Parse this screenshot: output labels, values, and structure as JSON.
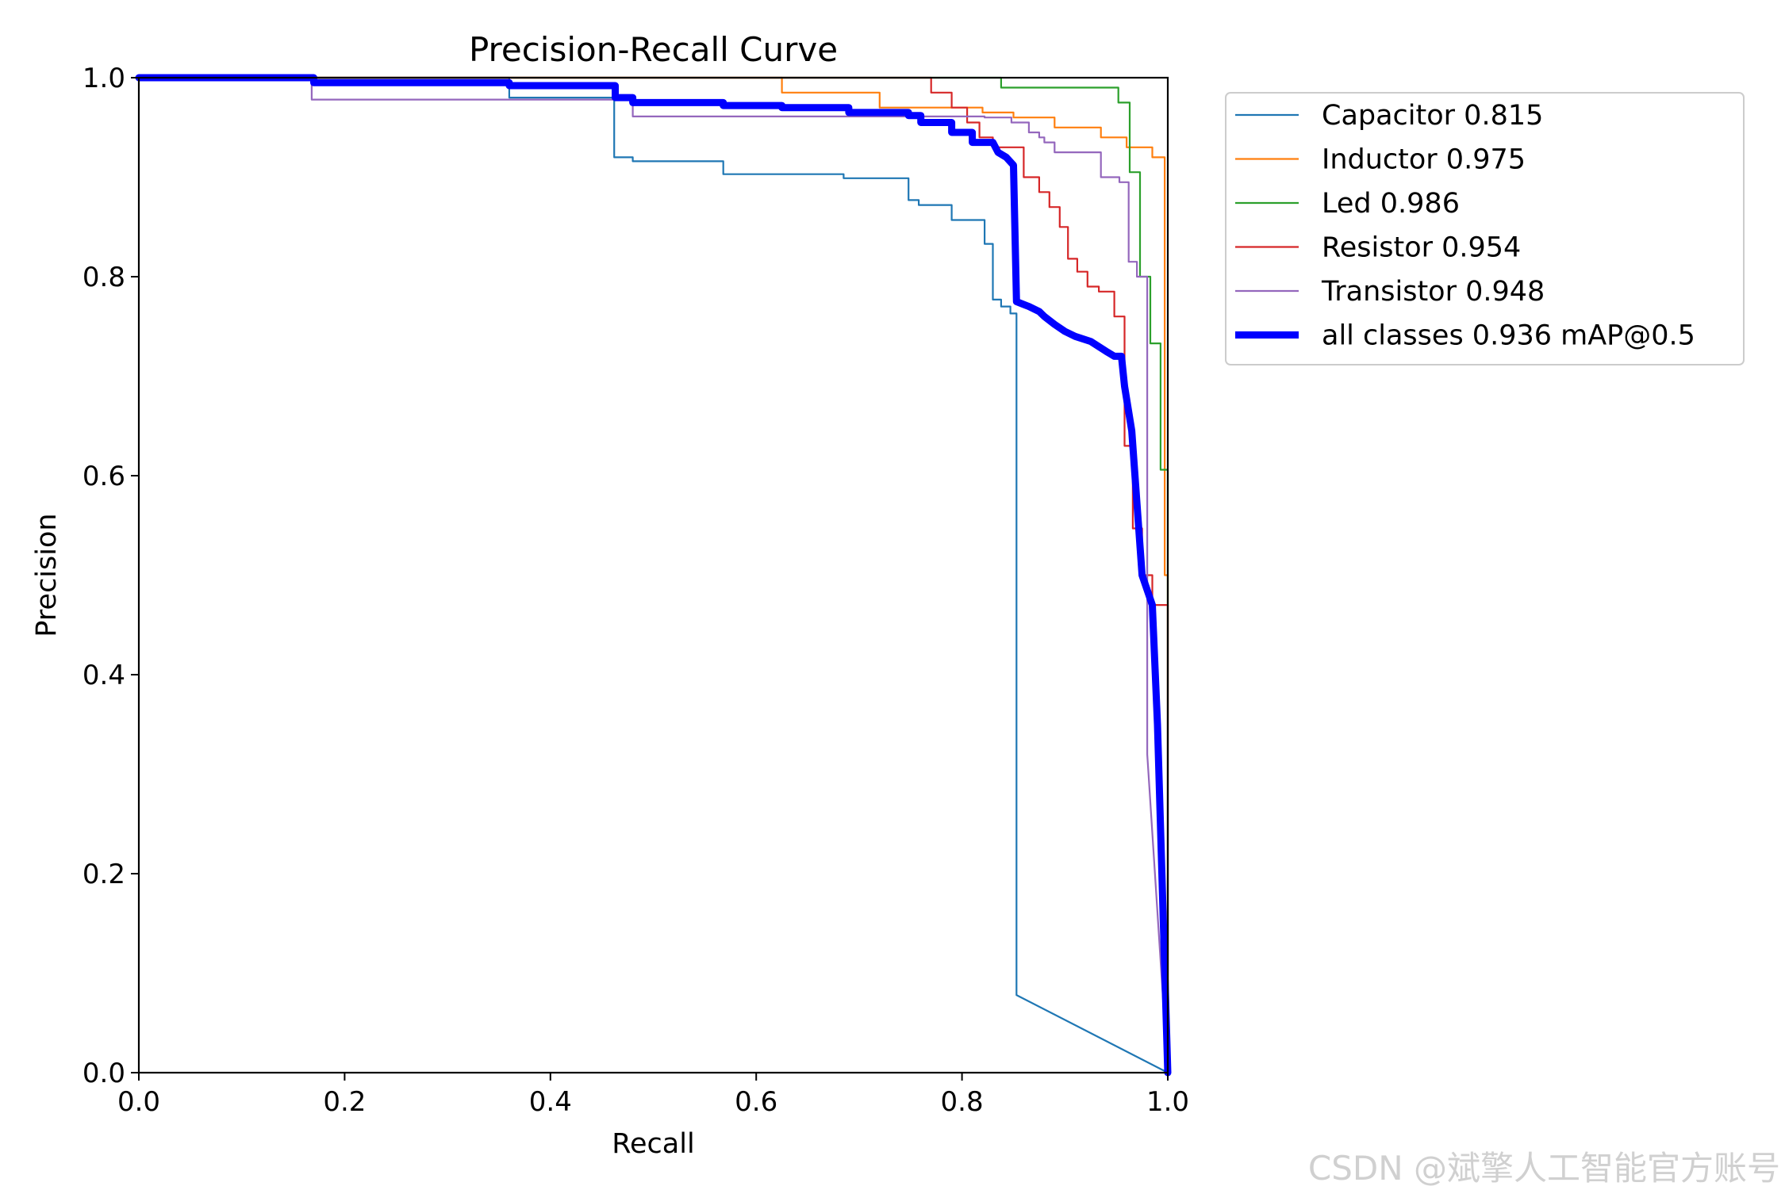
{
  "chart_data": {
    "type": "line",
    "title": "Precision-Recall Curve",
    "xlabel": "Recall",
    "ylabel": "Precision",
    "xlim": [
      0,
      1
    ],
    "ylim": [
      0,
      1
    ],
    "xticks": [
      "0.0",
      "0.2",
      "0.4",
      "0.6",
      "0.8",
      "1.0"
    ],
    "yticks": [
      "0.0",
      "0.2",
      "0.4",
      "0.6",
      "0.8",
      "1.0"
    ],
    "grid": false,
    "legend_position": "outside-top-right",
    "series": [
      {
        "name": "Capacitor 0.815",
        "color": "#1f77b4",
        "width": "thin",
        "x": [
          0,
          0.36,
          0.36,
          0.462,
          0.462,
          0.48,
          0.48,
          0.568,
          0.568,
          0.685,
          0.685,
          0.748,
          0.748,
          0.758,
          0.758,
          0.79,
          0.79,
          0.822,
          0.822,
          0.83,
          0.83,
          0.838,
          0.838,
          0.847,
          0.847,
          0.853,
          0.853,
          1.0
        ],
        "y": [
          1.0,
          1.0,
          0.98,
          0.98,
          0.92,
          0.92,
          0.916,
          0.916,
          0.903,
          0.903,
          0.899,
          0.899,
          0.877,
          0.877,
          0.872,
          0.872,
          0.857,
          0.857,
          0.833,
          0.833,
          0.777,
          0.777,
          0.77,
          0.77,
          0.763,
          0.763,
          0.078,
          0.0
        ]
      },
      {
        "name": "Inductor 0.975",
        "color": "#ff7f0e",
        "width": "thin",
        "x": [
          0,
          0.625,
          0.625,
          0.72,
          0.72,
          0.82,
          0.82,
          0.85,
          0.85,
          0.89,
          0.89,
          0.935,
          0.935,
          0.96,
          0.96,
          0.985,
          0.985,
          0.997,
          0.997,
          1.0,
          1.0
        ],
        "y": [
          1.0,
          1.0,
          0.985,
          0.985,
          0.97,
          0.97,
          0.965,
          0.965,
          0.96,
          0.96,
          0.95,
          0.95,
          0.94,
          0.94,
          0.93,
          0.93,
          0.92,
          0.92,
          0.5,
          0.5,
          0.0
        ]
      },
      {
        "name": "Led 0.986",
        "color": "#2ca02c",
        "width": "thin",
        "x": [
          0,
          0.838,
          0.838,
          0.952,
          0.952,
          0.963,
          0.963,
          0.973,
          0.973,
          0.983,
          0.983,
          0.993,
          0.993,
          1.0,
          1.0
        ],
        "y": [
          1.0,
          1.0,
          0.99,
          0.99,
          0.975,
          0.975,
          0.905,
          0.905,
          0.8,
          0.8,
          0.733,
          0.733,
          0.606,
          0.606,
          0.0
        ]
      },
      {
        "name": "Resistor 0.954",
        "color": "#d62728",
        "width": "thin",
        "x": [
          0,
          0.77,
          0.77,
          0.79,
          0.79,
          0.805,
          0.805,
          0.817,
          0.817,
          0.83,
          0.83,
          0.86,
          0.86,
          0.875,
          0.875,
          0.885,
          0.885,
          0.895,
          0.895,
          0.903,
          0.903,
          0.912,
          0.912,
          0.922,
          0.922,
          0.933,
          0.933,
          0.948,
          0.948,
          0.958,
          0.958,
          0.966,
          0.966,
          0.975,
          0.975,
          0.985,
          0.985,
          1.0,
          1.0
        ],
        "y": [
          1.0,
          1.0,
          0.985,
          0.985,
          0.97,
          0.97,
          0.955,
          0.955,
          0.94,
          0.94,
          0.93,
          0.93,
          0.9,
          0.9,
          0.885,
          0.885,
          0.87,
          0.87,
          0.85,
          0.85,
          0.818,
          0.818,
          0.805,
          0.805,
          0.79,
          0.79,
          0.785,
          0.785,
          0.76,
          0.76,
          0.63,
          0.63,
          0.547,
          0.547,
          0.5,
          0.5,
          0.47,
          0.47,
          0.0
        ]
      },
      {
        "name": "Transistor 0.948",
        "color": "#9467bd",
        "width": "thin",
        "x": [
          0,
          0.168,
          0.168,
          0.48,
          0.48,
          0.822,
          0.822,
          0.848,
          0.848,
          0.865,
          0.865,
          0.875,
          0.875,
          0.88,
          0.88,
          0.89,
          0.89,
          0.935,
          0.935,
          0.953,
          0.953,
          0.962,
          0.962,
          0.97,
          0.97,
          0.98,
          0.98,
          1.0
        ],
        "y": [
          1.0,
          1.0,
          0.978,
          0.978,
          0.961,
          0.961,
          0.96,
          0.96,
          0.955,
          0.955,
          0.945,
          0.945,
          0.94,
          0.94,
          0.935,
          0.935,
          0.925,
          0.925,
          0.9,
          0.9,
          0.895,
          0.895,
          0.815,
          0.815,
          0.8,
          0.8,
          0.32,
          0.0
        ]
      },
      {
        "name": "all classes 0.936 mAP@0.5",
        "color": "#0000ff",
        "width": "thick",
        "x": [
          0,
          0.17,
          0.17,
          0.36,
          0.36,
          0.463,
          0.463,
          0.48,
          0.48,
          0.568,
          0.568,
          0.625,
          0.625,
          0.69,
          0.69,
          0.748,
          0.748,
          0.76,
          0.76,
          0.79,
          0.79,
          0.81,
          0.81,
          0.83,
          0.835,
          0.835,
          0.843,
          0.843,
          0.85,
          0.85,
          0.853,
          0.853,
          0.86,
          0.865,
          0.875,
          0.88,
          0.89,
          0.9,
          0.91,
          0.925,
          0.94,
          0.948,
          0.955,
          0.958,
          0.958,
          0.965,
          0.965,
          0.975,
          0.975,
          0.985,
          0.985,
          0.99,
          0.992,
          1.0
        ],
        "y": [
          1.0,
          1.0,
          0.995,
          0.995,
          0.992,
          0.992,
          0.98,
          0.98,
          0.975,
          0.975,
          0.972,
          0.972,
          0.97,
          0.97,
          0.965,
          0.965,
          0.962,
          0.962,
          0.955,
          0.955,
          0.945,
          0.945,
          0.935,
          0.935,
          0.925,
          0.925,
          0.92,
          0.92,
          0.912,
          0.912,
          0.775,
          0.775,
          0.772,
          0.77,
          0.765,
          0.76,
          0.752,
          0.745,
          0.74,
          0.735,
          0.725,
          0.72,
          0.72,
          0.69,
          0.69,
          0.645,
          0.645,
          0.5,
          0.5,
          0.47,
          0.47,
          0.35,
          0.28,
          0.0
        ]
      }
    ]
  },
  "watermark": "CSDN @斌擎人工智能官方账号"
}
